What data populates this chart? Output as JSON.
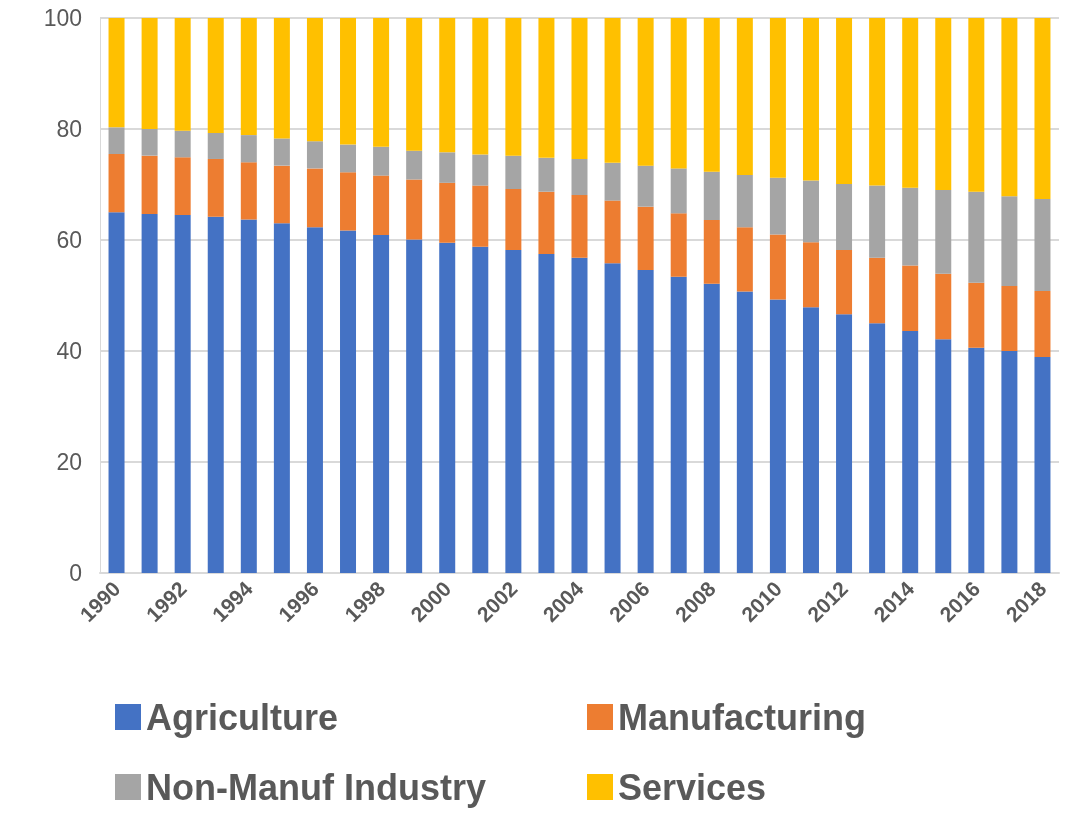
{
  "chart_data": {
    "type": "bar",
    "stacked": true,
    "categories": [
      "1990",
      null,
      "1992",
      null,
      "1994",
      null,
      "1996",
      null,
      "1998",
      null,
      "2000",
      null,
      "2002",
      null,
      "2004",
      null,
      "2006",
      null,
      "2008",
      null,
      "2010",
      null,
      "2012",
      null,
      "2014",
      null,
      "2016",
      null,
      "2018"
    ],
    "series": [
      {
        "name": "Agriculture",
        "color": "#4472c4",
        "values": [
          65.0,
          64.7,
          64.5,
          64.2,
          63.7,
          63.0,
          62.3,
          61.7,
          60.9,
          60.1,
          59.5,
          58.8,
          58.2,
          57.5,
          56.8,
          55.8,
          54.6,
          53.4,
          52.1,
          50.7,
          49.3,
          47.9,
          46.6,
          45.0,
          43.6,
          42.1,
          40.6,
          40.0,
          38.9
        ]
      },
      {
        "name": "Manufacturing",
        "color": "#ed7d31",
        "values": [
          10.5,
          10.5,
          10.4,
          10.4,
          10.3,
          10.4,
          10.6,
          10.5,
          10.7,
          10.8,
          10.8,
          11.0,
          11.0,
          11.2,
          11.3,
          11.3,
          11.4,
          11.4,
          11.5,
          11.6,
          11.7,
          11.7,
          11.6,
          11.8,
          11.8,
          11.8,
          11.7,
          11.7,
          11.9
        ]
      },
      {
        "name": "Non-Manuf Industry",
        "color": "#a5a5a5",
        "values": [
          4.8,
          4.8,
          4.8,
          4.7,
          4.9,
          4.9,
          4.9,
          5.0,
          5.2,
          5.2,
          5.5,
          5.6,
          6.0,
          6.1,
          6.5,
          6.8,
          7.4,
          8.1,
          8.7,
          9.4,
          10.2,
          11.1,
          11.9,
          13.0,
          14.0,
          15.1,
          16.4,
          16.2,
          16.6
        ]
      },
      {
        "name": "Services",
        "color": "#ffc000",
        "values": [
          19.7,
          20.0,
          20.3,
          20.7,
          21.1,
          21.7,
          22.2,
          22.8,
          23.2,
          23.9,
          24.2,
          24.6,
          24.8,
          25.2,
          25.4,
          26.1,
          26.6,
          27.1,
          27.7,
          28.3,
          28.8,
          29.3,
          29.9,
          30.2,
          30.6,
          31.0,
          31.3,
          32.1,
          32.6
        ]
      }
    ],
    "ylim": [
      0,
      100
    ],
    "yticks": [
      0,
      20,
      40,
      60,
      80,
      100
    ],
    "grid": "y",
    "legend": "bottom"
  }
}
